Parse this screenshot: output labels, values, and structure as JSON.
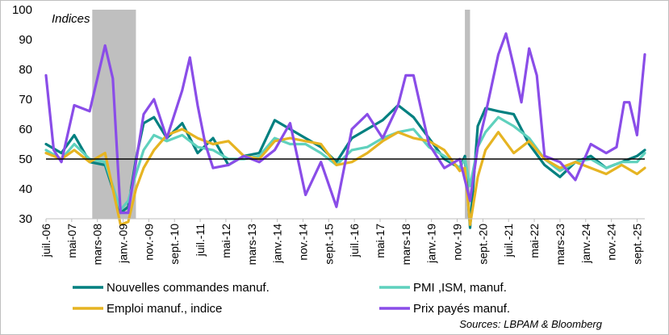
{
  "chart_data": {
    "type": "line",
    "title": "",
    "unit_label": "Indices",
    "ylim": [
      30,
      100
    ],
    "y_ticks": [
      30,
      40,
      50,
      60,
      70,
      80,
      90,
      100
    ],
    "xlim": [
      "2006-07",
      "2025-12"
    ],
    "x_tick_labels": [
      {
        "date": "2006-07",
        "label": "juil.-06"
      },
      {
        "date": "2007-05",
        "label": "mai-07"
      },
      {
        "date": "2008-03",
        "label": "mars-08"
      },
      {
        "date": "2009-01",
        "label": "janv.-09"
      },
      {
        "date": "2009-11",
        "label": "nov.-09"
      },
      {
        "date": "2010-09",
        "label": "sept.-10"
      },
      {
        "date": "2011-07",
        "label": "juil.-11"
      },
      {
        "date": "2012-05",
        "label": "mai-12"
      },
      {
        "date": "2013-03",
        "label": "mars-13"
      },
      {
        "date": "2014-01",
        "label": "janv.-14"
      },
      {
        "date": "2014-11",
        "label": "nov.-14"
      },
      {
        "date": "2015-09",
        "label": "sept.-15"
      },
      {
        "date": "2016-07",
        "label": "juil.-16"
      },
      {
        "date": "2017-05",
        "label": "mai-17"
      },
      {
        "date": "2018-03",
        "label": "mars-18"
      },
      {
        "date": "2019-01",
        "label": "janv.-19"
      },
      {
        "date": "2019-11",
        "label": "nov.-19"
      },
      {
        "date": "2020-09",
        "label": "sept.-20"
      },
      {
        "date": "2021-07",
        "label": "juil.-21"
      },
      {
        "date": "2022-05",
        "label": "mai-22"
      },
      {
        "date": "2023-03",
        "label": "mars-23"
      },
      {
        "date": "2024-01",
        "label": "janv.-24"
      },
      {
        "date": "2024-11",
        "label": "nov.-24"
      },
      {
        "date": "2025-09",
        "label": "sept.-25"
      }
    ],
    "reference_line": {
      "y": 50,
      "color": "#000000"
    },
    "recession_bands": [
      {
        "start": "2008-01",
        "end": "2009-06",
        "color": "#bfbfbf"
      },
      {
        "start": "2020-02",
        "end": "2020-04",
        "color": "#bfbfbf"
      }
    ],
    "series": [
      {
        "name": "Nouvelles commandes manuf.",
        "color": "#008080",
        "points": [
          [
            "2006-07",
            55
          ],
          [
            "2007-01",
            52
          ],
          [
            "2007-06",
            58
          ],
          [
            "2007-12",
            49
          ],
          [
            "2008-06",
            48
          ],
          [
            "2008-12",
            32
          ],
          [
            "2009-03",
            34
          ],
          [
            "2009-06",
            50
          ],
          [
            "2009-09",
            62
          ],
          [
            "2010-01",
            64
          ],
          [
            "2010-06",
            57
          ],
          [
            "2010-12",
            62
          ],
          [
            "2011-06",
            52
          ],
          [
            "2011-12",
            57
          ],
          [
            "2012-06",
            48
          ],
          [
            "2012-12",
            51
          ],
          [
            "2013-06",
            52
          ],
          [
            "2013-12",
            63
          ],
          [
            "2014-06",
            60
          ],
          [
            "2014-12",
            57
          ],
          [
            "2015-06",
            54
          ],
          [
            "2015-12",
            49
          ],
          [
            "2016-06",
            57
          ],
          [
            "2016-12",
            60
          ],
          [
            "2017-06",
            63
          ],
          [
            "2017-12",
            68
          ],
          [
            "2018-06",
            64
          ],
          [
            "2018-12",
            57
          ],
          [
            "2019-06",
            50
          ],
          [
            "2019-12",
            47
          ],
          [
            "2020-02",
            51
          ],
          [
            "2020-04",
            27
          ],
          [
            "2020-07",
            61
          ],
          [
            "2020-10",
            67
          ],
          [
            "2021-03",
            66
          ],
          [
            "2021-09",
            65
          ],
          [
            "2022-03",
            55
          ],
          [
            "2022-09",
            48
          ],
          [
            "2023-03",
            44
          ],
          [
            "2023-09",
            49
          ],
          [
            "2024-03",
            51
          ],
          [
            "2024-09",
            47
          ],
          [
            "2025-03",
            49
          ],
          [
            "2025-09",
            51
          ],
          [
            "2025-12",
            53
          ]
        ]
      },
      {
        "name": "PMI ,ISM, manuf.",
        "color": "#5fd1bd",
        "points": [
          [
            "2006-07",
            53
          ],
          [
            "2007-01",
            50
          ],
          [
            "2007-06",
            55
          ],
          [
            "2007-12",
            50
          ],
          [
            "2008-06",
            49
          ],
          [
            "2008-12",
            33
          ],
          [
            "2009-03",
            36
          ],
          [
            "2009-06",
            45
          ],
          [
            "2009-09",
            53
          ],
          [
            "2010-01",
            58
          ],
          [
            "2010-06",
            56
          ],
          [
            "2010-12",
            58
          ],
          [
            "2011-06",
            54
          ],
          [
            "2011-12",
            53
          ],
          [
            "2012-06",
            50
          ],
          [
            "2012-12",
            50
          ],
          [
            "2013-06",
            51
          ],
          [
            "2013-12",
            57
          ],
          [
            "2014-06",
            55
          ],
          [
            "2014-12",
            55
          ],
          [
            "2015-06",
            52
          ],
          [
            "2015-12",
            48
          ],
          [
            "2016-06",
            53
          ],
          [
            "2016-12",
            54
          ],
          [
            "2017-06",
            57
          ],
          [
            "2017-12",
            59
          ],
          [
            "2018-06",
            60
          ],
          [
            "2018-12",
            54
          ],
          [
            "2019-06",
            51
          ],
          [
            "2019-12",
            47
          ],
          [
            "2020-02",
            50
          ],
          [
            "2020-04",
            41
          ],
          [
            "2020-07",
            54
          ],
          [
            "2020-10",
            59
          ],
          [
            "2021-03",
            64
          ],
          [
            "2021-09",
            61
          ],
          [
            "2022-03",
            57
          ],
          [
            "2022-09",
            50
          ],
          [
            "2023-03",
            46
          ],
          [
            "2023-09",
            49
          ],
          [
            "2024-03",
            50
          ],
          [
            "2024-09",
            47
          ],
          [
            "2025-03",
            49
          ],
          [
            "2025-09",
            49
          ],
          [
            "2025-12",
            52
          ]
        ]
      },
      {
        "name": "Emploi manuf., indice",
        "color": "#e6b422",
        "points": [
          [
            "2006-07",
            52
          ],
          [
            "2007-01",
            50
          ],
          [
            "2007-06",
            53
          ],
          [
            "2007-12",
            49
          ],
          [
            "2008-06",
            52
          ],
          [
            "2008-12",
            28
          ],
          [
            "2009-03",
            29
          ],
          [
            "2009-06",
            40
          ],
          [
            "2009-09",
            47
          ],
          [
            "2010-01",
            53
          ],
          [
            "2010-06",
            58
          ],
          [
            "2010-12",
            60
          ],
          [
            "2011-06",
            57
          ],
          [
            "2011-12",
            55
          ],
          [
            "2012-06",
            56
          ],
          [
            "2012-12",
            51
          ],
          [
            "2013-06",
            50
          ],
          [
            "2013-12",
            56
          ],
          [
            "2014-06",
            57
          ],
          [
            "2014-12",
            56
          ],
          [
            "2015-06",
            55
          ],
          [
            "2015-12",
            48
          ],
          [
            "2016-06",
            49
          ],
          [
            "2016-12",
            52
          ],
          [
            "2017-06",
            56
          ],
          [
            "2017-12",
            59
          ],
          [
            "2018-06",
            57
          ],
          [
            "2018-12",
            56
          ],
          [
            "2019-06",
            53
          ],
          [
            "2019-12",
            46
          ],
          [
            "2020-02",
            47
          ],
          [
            "2020-04",
            28
          ],
          [
            "2020-07",
            44
          ],
          [
            "2020-10",
            53
          ],
          [
            "2021-03",
            59
          ],
          [
            "2021-09",
            52
          ],
          [
            "2022-03",
            56
          ],
          [
            "2022-09",
            50
          ],
          [
            "2023-03",
            47
          ],
          [
            "2023-09",
            49
          ],
          [
            "2024-03",
            47
          ],
          [
            "2024-09",
            45
          ],
          [
            "2025-03",
            48
          ],
          [
            "2025-09",
            45
          ],
          [
            "2025-12",
            47
          ]
        ]
      },
      {
        "name": "Prix payés manuf.",
        "color": "#8a4de8",
        "points": [
          [
            "2006-07",
            78
          ],
          [
            "2006-10",
            53
          ],
          [
            "2007-01",
            49
          ],
          [
            "2007-06",
            68
          ],
          [
            "2007-12",
            66
          ],
          [
            "2008-06",
            88
          ],
          [
            "2008-09",
            77
          ],
          [
            "2008-12",
            32
          ],
          [
            "2009-03",
            32
          ],
          [
            "2009-06",
            49
          ],
          [
            "2009-09",
            65
          ],
          [
            "2010-01",
            70
          ],
          [
            "2010-06",
            57
          ],
          [
            "2010-12",
            73
          ],
          [
            "2011-03",
            84
          ],
          [
            "2011-06",
            68
          ],
          [
            "2011-09",
            55
          ],
          [
            "2011-12",
            47
          ],
          [
            "2012-06",
            48
          ],
          [
            "2012-12",
            51
          ],
          [
            "2013-06",
            49
          ],
          [
            "2013-12",
            53
          ],
          [
            "2014-06",
            62
          ],
          [
            "2014-12",
            38
          ],
          [
            "2015-06",
            49
          ],
          [
            "2015-12",
            34
          ],
          [
            "2016-06",
            60
          ],
          [
            "2016-12",
            65
          ],
          [
            "2017-06",
            57
          ],
          [
            "2017-12",
            68
          ],
          [
            "2018-03",
            78
          ],
          [
            "2018-06",
            78
          ],
          [
            "2018-12",
            55
          ],
          [
            "2019-06",
            47
          ],
          [
            "2019-12",
            50
          ],
          [
            "2020-04",
            36
          ],
          [
            "2020-07",
            54
          ],
          [
            "2020-10",
            65
          ],
          [
            "2021-03",
            85
          ],
          [
            "2021-06",
            92
          ],
          [
            "2021-09",
            81
          ],
          [
            "2021-12",
            69
          ],
          [
            "2022-03",
            87
          ],
          [
            "2022-06",
            78
          ],
          [
            "2022-09",
            51
          ],
          [
            "2023-03",
            49
          ],
          [
            "2023-09",
            43
          ],
          [
            "2024-03",
            55
          ],
          [
            "2024-09",
            52
          ],
          [
            "2025-01",
            54
          ],
          [
            "2025-04",
            69
          ],
          [
            "2025-06",
            69
          ],
          [
            "2025-09",
            58
          ],
          [
            "2025-12",
            85
          ]
        ]
      }
    ],
    "legend": {
      "position": "bottom"
    },
    "source": "Sources: LBPAM & Bloomberg"
  }
}
